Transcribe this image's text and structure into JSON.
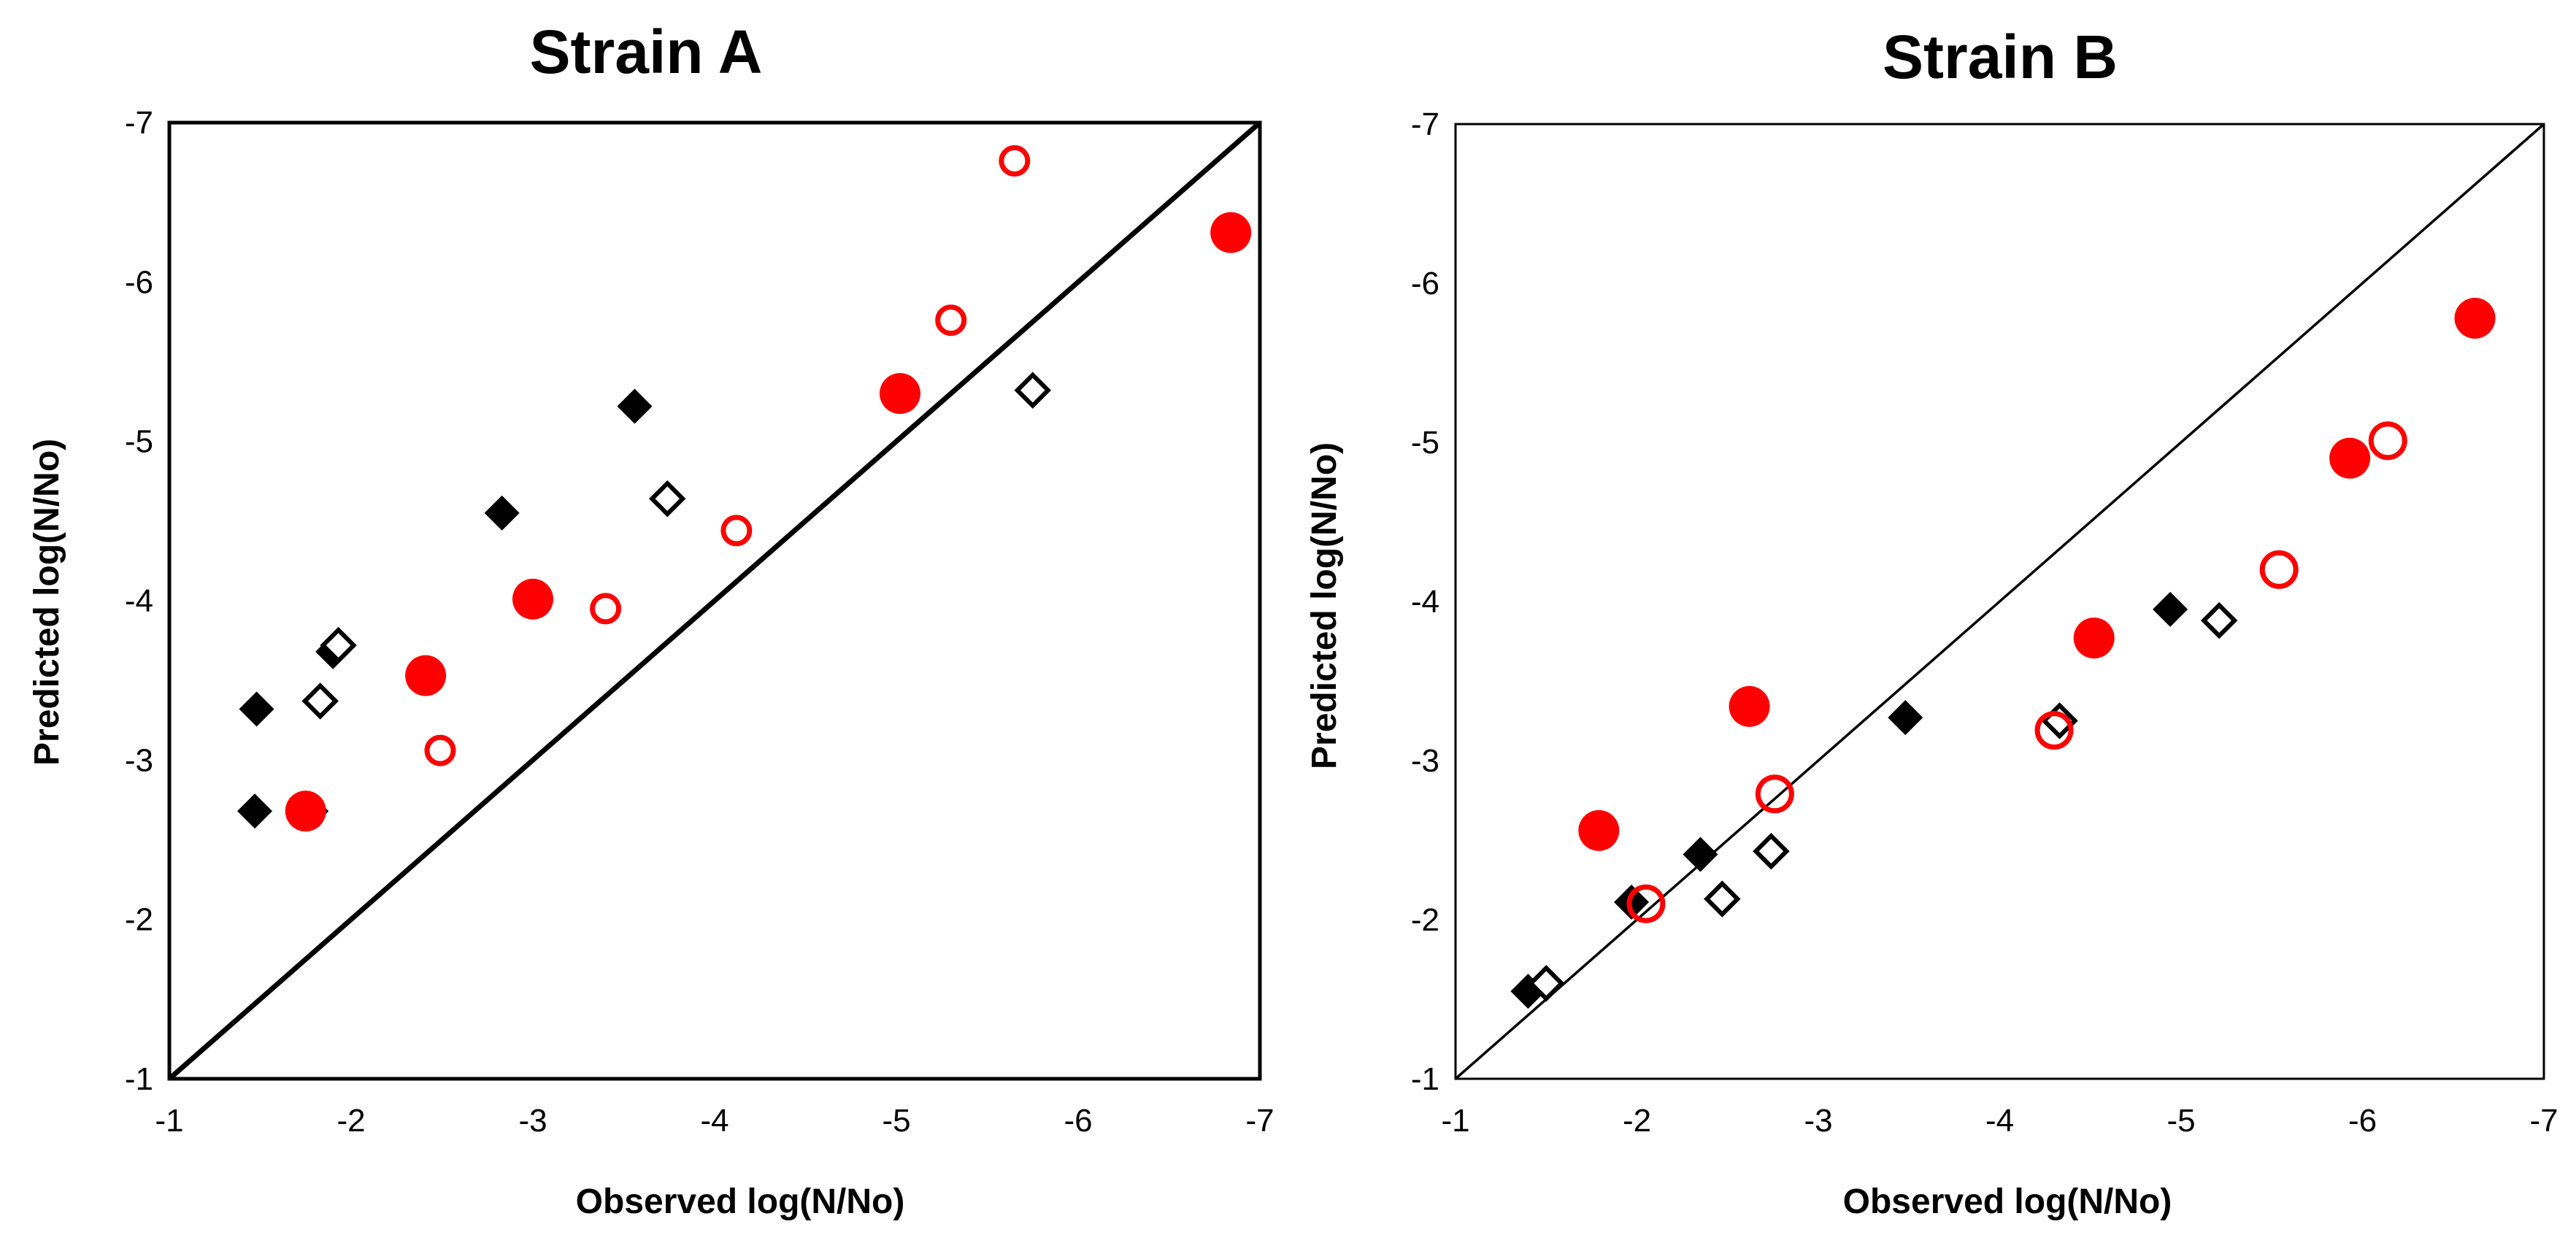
{
  "chart_data": [
    {
      "type": "scatter",
      "title": "Strain A",
      "xlabel": "Observed log(N/No)",
      "ylabel": "Predicted log(N/No)",
      "xlim": [
        -1,
        -7
      ],
      "ylim": [
        -1,
        -7
      ],
      "xticks": [
        "-1",
        "-2",
        "-3",
        "-4",
        "-5",
        "-6",
        "-7"
      ],
      "yticks": [
        "-1",
        "-2",
        "-3",
        "-4",
        "-5",
        "-6",
        "-7"
      ],
      "identity_line": true,
      "series": [
        {
          "name": "black-filled-diamond",
          "marker": "diamond",
          "filled": true,
          "color": "#000000",
          "points": [
            [
              -1.48,
              -3.32
            ],
            [
              -1.47,
              -2.68
            ],
            [
              -1.78,
              -2.68
            ],
            [
              -1.9,
              -3.68
            ],
            [
              -2.83,
              -4.55
            ],
            [
              -3.56,
              -5.22
            ]
          ]
        },
        {
          "name": "black-open-diamond",
          "marker": "diamond",
          "filled": false,
          "color": "#000000",
          "points": [
            [
              -1.83,
              -3.37
            ],
            [
              -1.93,
              -3.72
            ],
            [
              -3.74,
              -4.64
            ],
            [
              -5.75,
              -5.32
            ]
          ]
        },
        {
          "name": "red-filled-circle",
          "marker": "circle",
          "filled": true,
          "color": "#ff0000",
          "points": [
            [
              -1.75,
              -2.68
            ],
            [
              -2.41,
              -3.53
            ],
            [
              -3.0,
              -4.01
            ],
            [
              -5.02,
              -5.3
            ],
            [
              -6.84,
              -6.31
            ]
          ]
        },
        {
          "name": "red-open-circle",
          "marker": "circle",
          "filled": false,
          "color": "#ff0000",
          "points": [
            [
              -2.49,
              -3.06
            ],
            [
              -3.4,
              -3.95
            ],
            [
              -4.12,
              -4.44
            ],
            [
              -5.3,
              -5.76
            ],
            [
              -5.65,
              -6.76
            ]
          ]
        }
      ]
    },
    {
      "type": "scatter",
      "title": "Strain B",
      "xlabel": "Observed log(N/No)",
      "ylabel": "Predicted log(N/No)",
      "xlim": [
        -1,
        -7
      ],
      "ylim": [
        -1,
        -7
      ],
      "xticks": [
        "-1",
        "-2",
        "-3",
        "-4",
        "-5",
        "-6",
        "-7"
      ],
      "yticks": [
        "-1",
        "-2",
        "-3",
        "-4",
        "-5",
        "-6",
        "-7"
      ],
      "identity_line": true,
      "series": [
        {
          "name": "black-filled-diamond",
          "marker": "diamond",
          "filled": true,
          "color": "#000000",
          "points": [
            [
              -1.4,
              -1.55
            ],
            [
              -1.97,
              -2.11
            ],
            [
              -2.35,
              -2.41
            ],
            [
              -3.48,
              -3.27
            ],
            [
              -4.94,
              -3.95
            ]
          ]
        },
        {
          "name": "black-open-diamond",
          "marker": "diamond",
          "filled": false,
          "color": "#000000",
          "points": [
            [
              -1.5,
              -1.6
            ],
            [
              -2.47,
              -2.13
            ],
            [
              -2.74,
              -2.43
            ],
            [
              -4.33,
              -3.25
            ],
            [
              -5.21,
              -3.88
            ]
          ]
        },
        {
          "name": "red-filled-circle",
          "marker": "circle",
          "filled": true,
          "color": "#ff0000",
          "points": [
            [
              -1.79,
              -2.56
            ],
            [
              -2.62,
              -3.34
            ],
            [
              -4.52,
              -3.77
            ],
            [
              -5.93,
              -4.9
            ],
            [
              -6.62,
              -5.78
            ]
          ]
        },
        {
          "name": "red-open-circle",
          "marker": "circle",
          "filled": false,
          "color": "#ff0000",
          "points": [
            [
              -2.05,
              -2.1
            ],
            [
              -2.76,
              -2.79
            ],
            [
              -4.3,
              -3.19
            ],
            [
              -5.54,
              -4.2
            ],
            [
              -6.14,
              -5.01
            ]
          ]
        }
      ]
    }
  ]
}
